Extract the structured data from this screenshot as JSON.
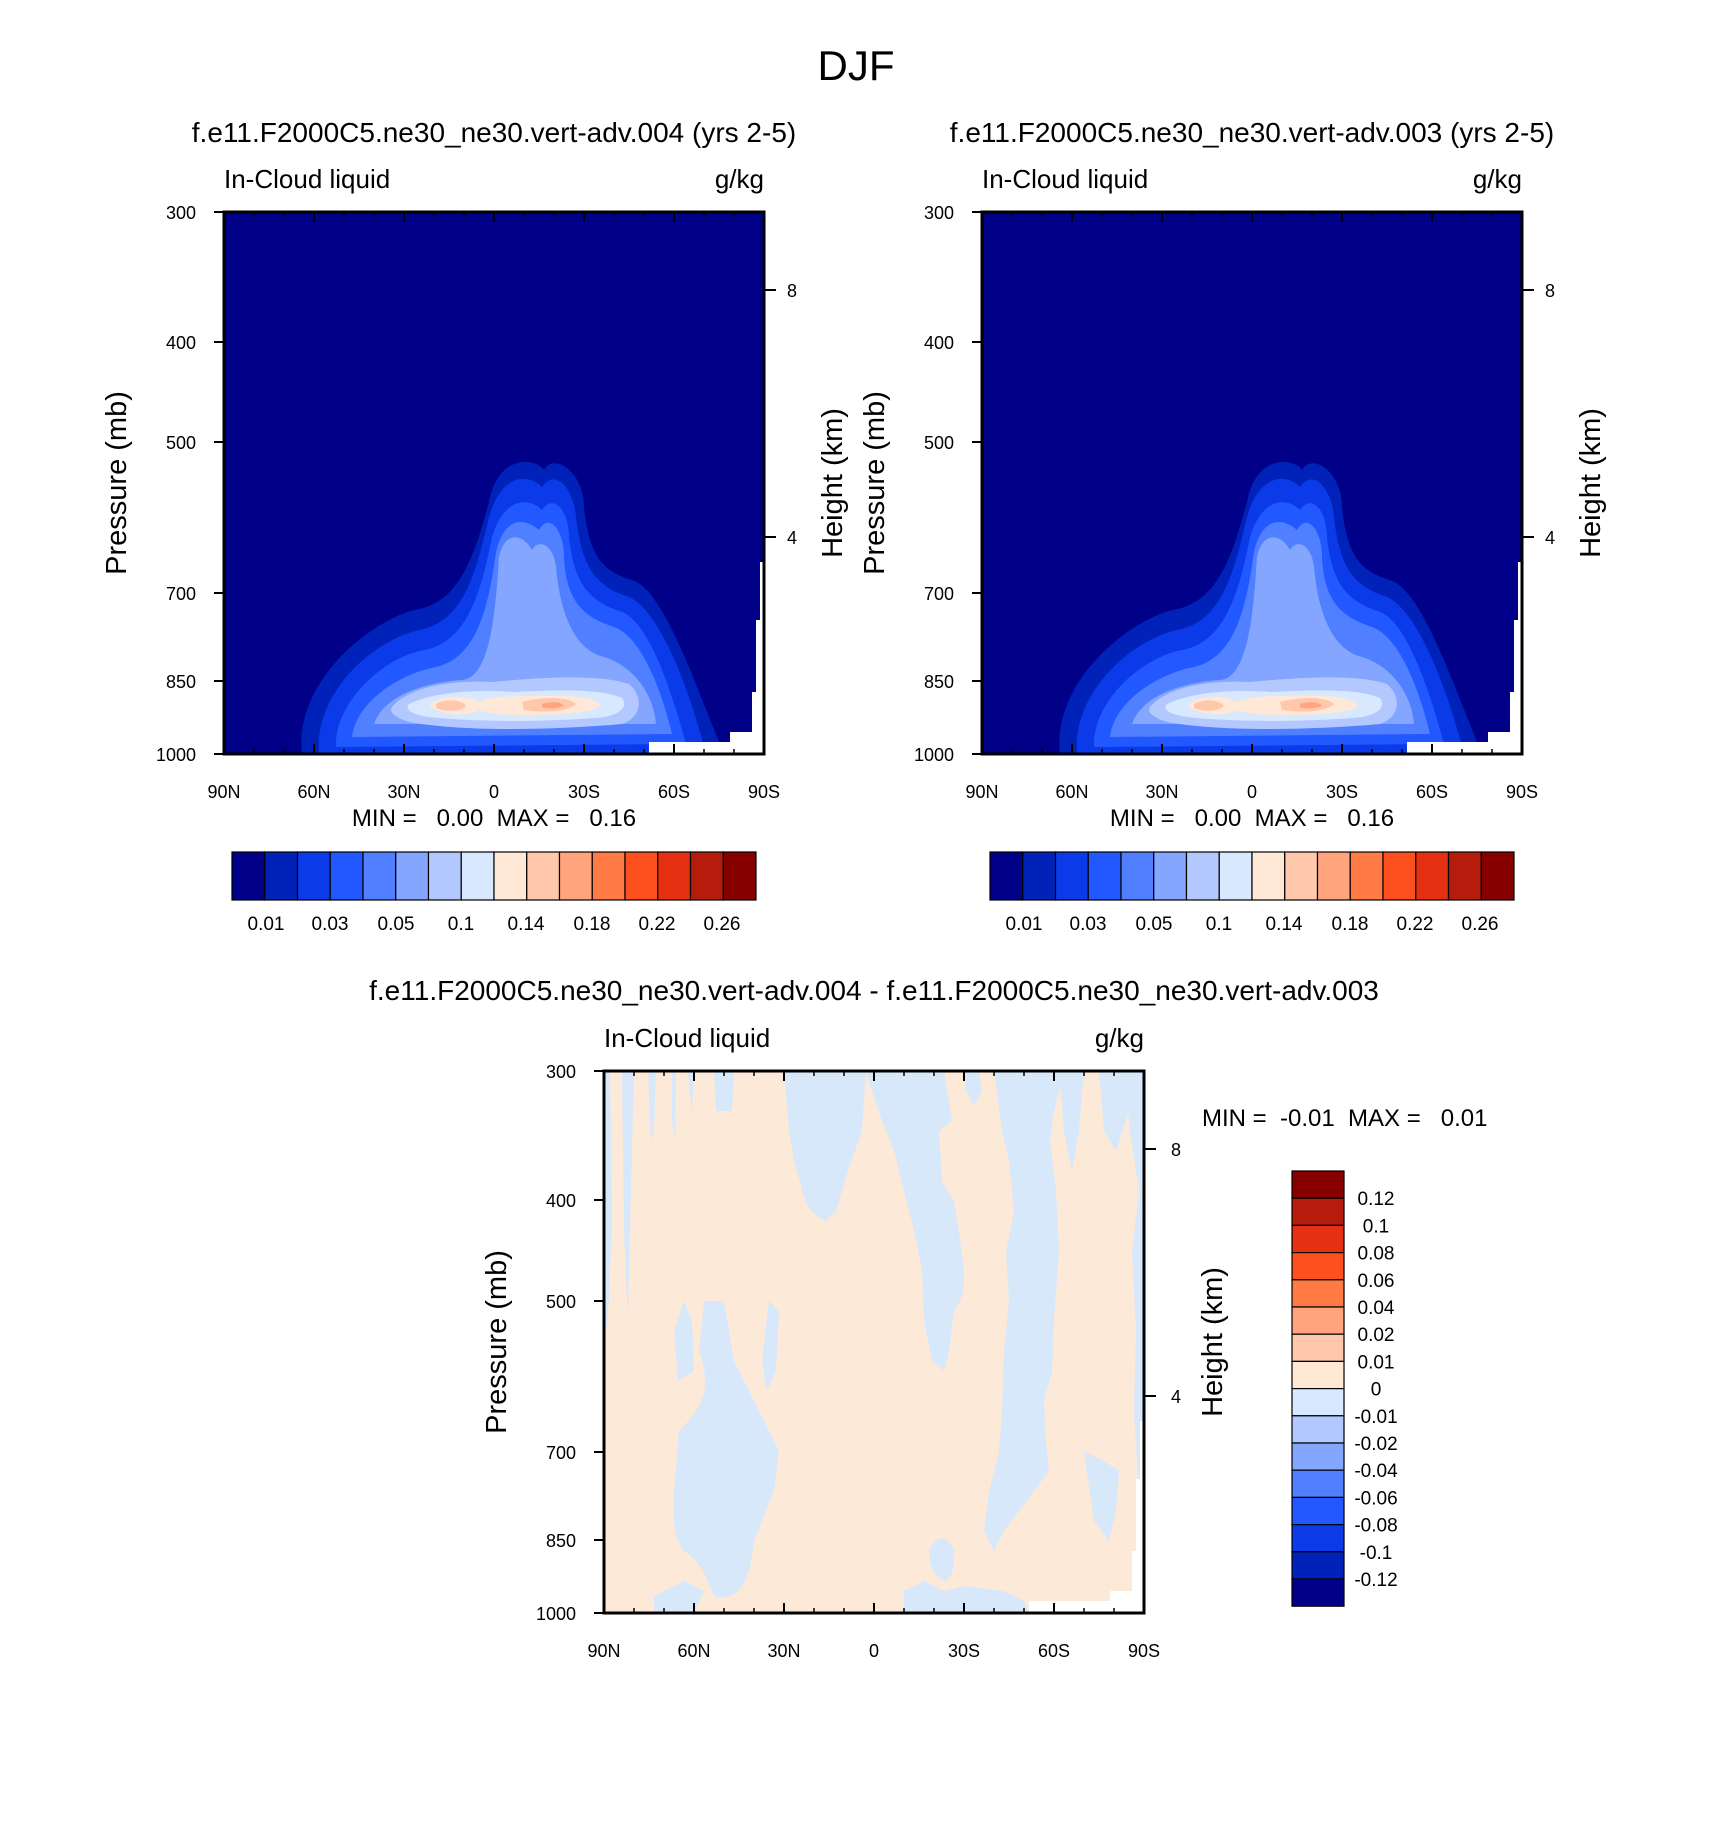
{
  "figure_title": "DJF",
  "chart_data": [
    {
      "type": "heatmap",
      "title": "f.e11.F2000C5.ne30_ne30.vert-adv.004 (yrs 2-5)",
      "left_string": "In-Cloud liquid",
      "right_string": "g/kg",
      "ylabel": "Pressure (mb)",
      "ylabel_right": "Height (km)",
      "x_ticks": [
        "90N",
        "60N",
        "30N",
        "0",
        "30S",
        "60S",
        "90S"
      ],
      "y_ticks": [
        "300",
        "400",
        "500",
        "700",
        "850",
        "1000"
      ],
      "y_ticks_right": [
        "8",
        "4"
      ],
      "xlim": [
        90,
        -90
      ],
      "ylim": [
        1000,
        300
      ],
      "y_scale": "log-pressure",
      "stats": "MIN =   0.00  MAX =   0.16",
      "colorbar_labels": [
        "0.01",
        "0.03",
        "0.05",
        "0.1",
        "0.14",
        "0.18",
        "0.22",
        "0.26"
      ],
      "colorbar_colors": [
        "#000088",
        "#0022b8",
        "#0b3ae8",
        "#2258ff",
        "#5080ff",
        "#84a6ff",
        "#b3c8ff",
        "#d8e8ff",
        "#ffe9d6",
        "#ffc8ad",
        "#ffa47c",
        "#ff7a45",
        "#fe4f1f",
        "#e53012",
        "#b51c0b",
        "#860000"
      ],
      "contours": [
        {
          "value": 0.01,
          "lat": [
            -70,
            -58,
            -48,
            -35,
            -20,
            -10,
            -5,
            0,
            8,
            15,
            25,
            40,
            55,
            68,
            75,
            70,
            55,
            35,
            20,
            5,
            -10,
            -25,
            -40,
            -52,
            -62,
            -70
          ],
          "p": [
            1000,
            910,
            860,
            830,
            820,
            770,
            640,
            540,
            520,
            540,
            560,
            700,
            760,
            840,
            930,
            1000,
            1000,
            1000,
            1000,
            1000,
            1000,
            1000,
            1000,
            1000,
            1000,
            1000
          ]
        }
      ]
    },
    {
      "type": "heatmap",
      "title": "f.e11.F2000C5.ne30_ne30.vert-adv.003 (yrs 2-5)",
      "left_string": "In-Cloud liquid",
      "right_string": "g/kg",
      "ylabel": "Pressure (mb)",
      "ylabel_right": "Height (km)",
      "x_ticks": [
        "90N",
        "60N",
        "30N",
        "0",
        "30S",
        "60S",
        "90S"
      ],
      "y_ticks": [
        "300",
        "400",
        "500",
        "700",
        "850",
        "1000"
      ],
      "y_ticks_right": [
        "8",
        "4"
      ],
      "xlim": [
        90,
        -90
      ],
      "ylim": [
        1000,
        300
      ],
      "y_scale": "log-pressure",
      "stats": "MIN =   0.00  MAX =   0.16",
      "colorbar_labels": [
        "0.01",
        "0.03",
        "0.05",
        "0.1",
        "0.14",
        "0.18",
        "0.22",
        "0.26"
      ],
      "colorbar_colors": [
        "#000088",
        "#0022b8",
        "#0b3ae8",
        "#2258ff",
        "#5080ff",
        "#84a6ff",
        "#b3c8ff",
        "#d8e8ff",
        "#ffe9d6",
        "#ffc8ad",
        "#ffa47c",
        "#ff7a45",
        "#fe4f1f",
        "#e53012",
        "#b51c0b",
        "#860000"
      ]
    },
    {
      "type": "heatmap",
      "title": "f.e11.F2000C5.ne30_ne30.vert-adv.004 - f.e11.F2000C5.ne30_ne30.vert-adv.003",
      "left_string": "In-Cloud liquid",
      "right_string": "g/kg",
      "ylabel": "Pressure (mb)",
      "ylabel_right": "Height (km)",
      "x_ticks": [
        "90N",
        "60N",
        "30N",
        "0",
        "30S",
        "60S",
        "90S"
      ],
      "y_ticks": [
        "300",
        "400",
        "500",
        "700",
        "850",
        "1000"
      ],
      "y_ticks_right": [
        "8",
        "4"
      ],
      "xlim": [
        90,
        -90
      ],
      "ylim": [
        1000,
        300
      ],
      "y_scale": "log-pressure",
      "stats": "MIN =  -0.01  MAX =   0.01",
      "colorbar_labels": [
        "0.12",
        "0.1",
        "0.08",
        "0.06",
        "0.04",
        "0.02",
        "0.01",
        "0",
        "-0.01",
        "-0.02",
        "-0.04",
        "-0.06",
        "-0.08",
        "-0.1",
        "-0.12"
      ],
      "colorbar_colors": [
        "#860000",
        "#b51c0b",
        "#e53012",
        "#fe4f1f",
        "#ff7a45",
        "#ffa47c",
        "#ffc8ad",
        "#ffe9d6",
        "#d8e8ff",
        "#b3c8ff",
        "#84a6ff",
        "#5080ff",
        "#2258ff",
        "#0b3ae8",
        "#0022b8",
        "#000088"
      ],
      "dominant_fill": "#fde9d7",
      "secondary_fill": "#d8e8fb"
    }
  ]
}
